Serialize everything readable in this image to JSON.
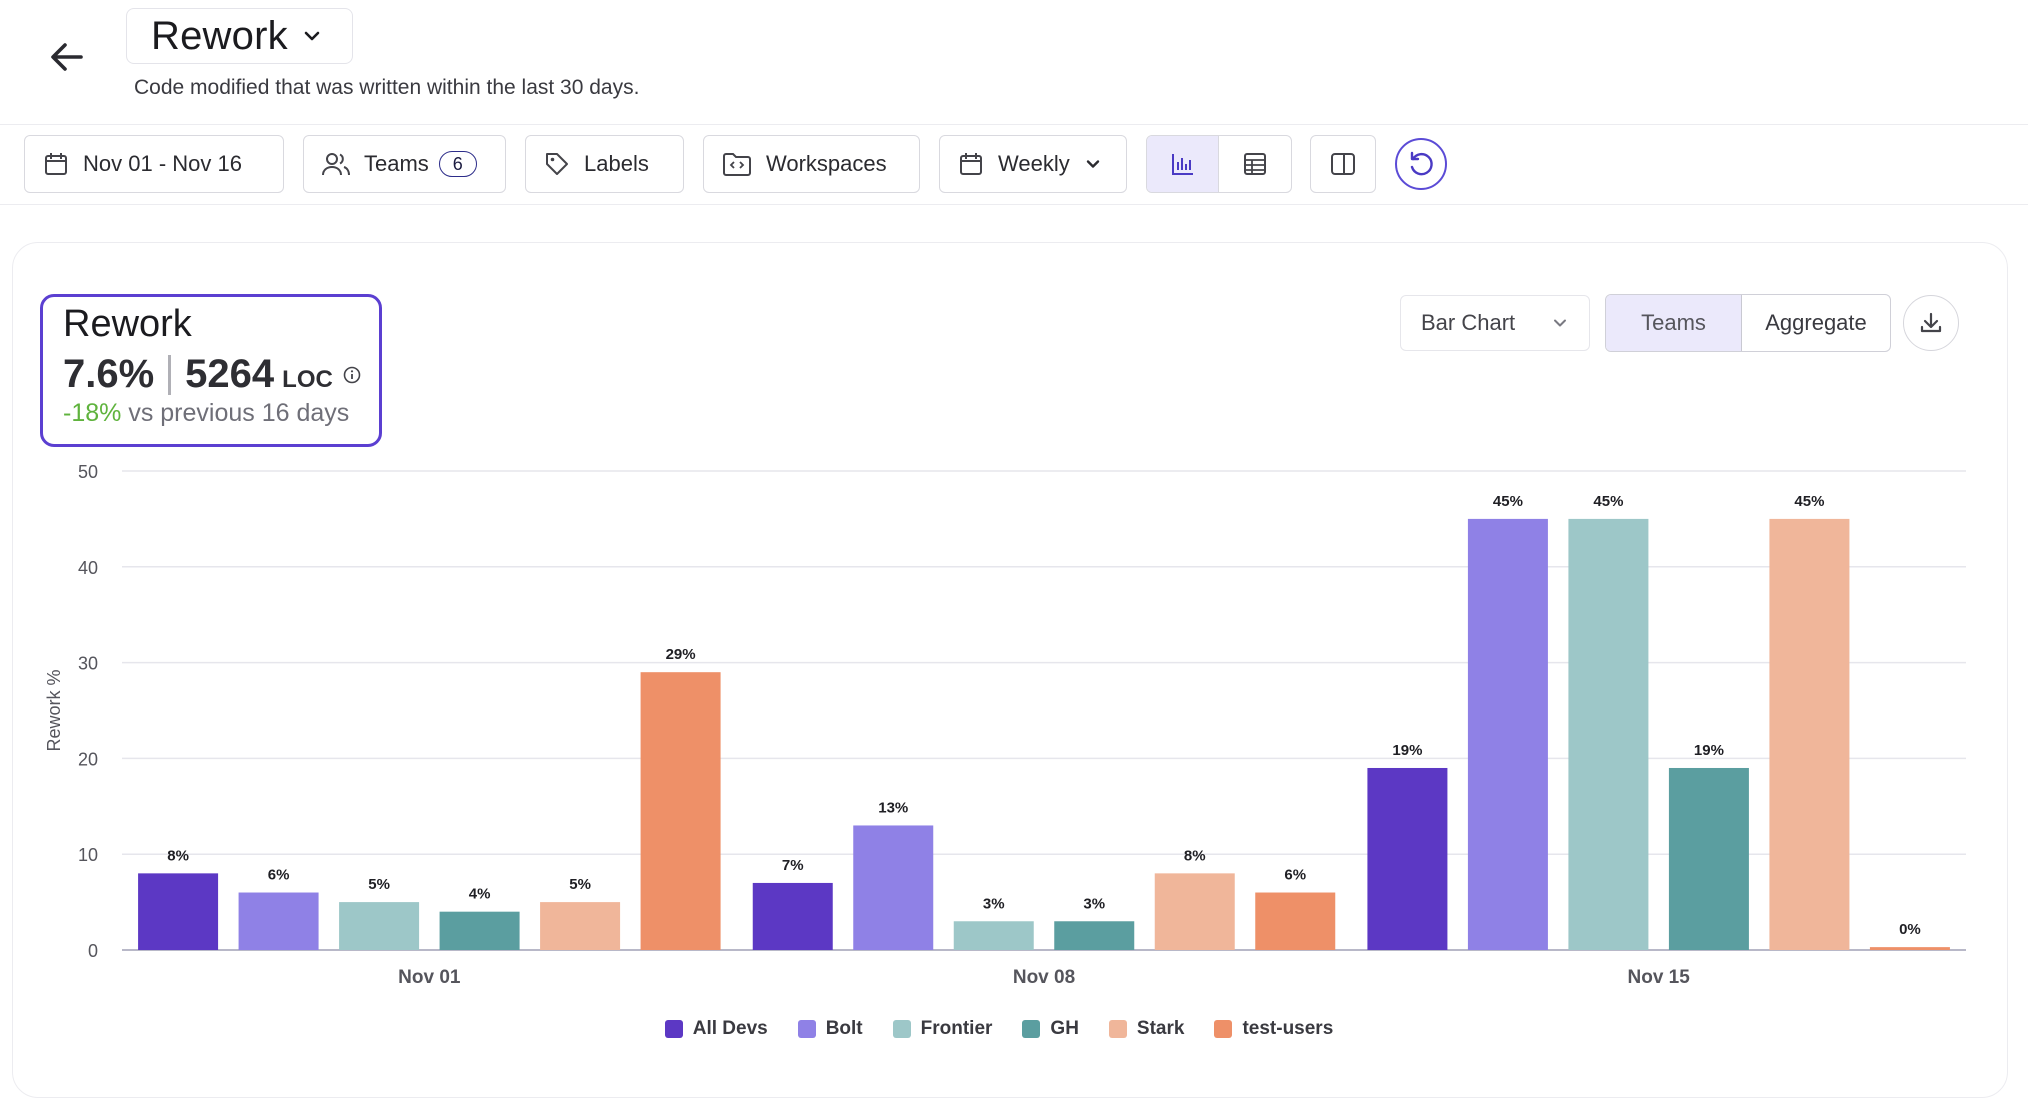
{
  "header": {
    "title": "Rework",
    "subtitle": "Code modified that was written within the last 30 days."
  },
  "toolbar": {
    "date_range": "Nov 01 - Nov 16",
    "teams_label": "Teams",
    "teams_count": "6",
    "labels_label": "Labels",
    "workspaces_label": "Workspaces",
    "interval_label": "Weekly"
  },
  "metric": {
    "title": "Rework",
    "percent": "7.6%",
    "loc": "5264",
    "loc_unit": "LOC",
    "change_pct": "-18%",
    "change_text": "vs previous 16 days"
  },
  "controls": {
    "chart_type": "Bar Chart",
    "group_teams": "Teams",
    "group_aggregate": "Aggregate"
  },
  "colors": {
    "accent": "#5b3fd1",
    "All Devs": "#5c38c4",
    "Bolt": "#8f81e6",
    "Frontier": "#9dc7c8",
    "GH": "#5b9ea0",
    "Stark": "#f0b69a",
    "test-users": "#ee9068"
  },
  "chart_data": {
    "type": "bar",
    "categories": [
      "Nov 01",
      "Nov 08",
      "Nov 15"
    ],
    "ylabel": "Rework %",
    "xlabel": "",
    "ylim": [
      0,
      50
    ],
    "yticks": [
      0,
      10,
      20,
      30,
      40,
      50
    ],
    "grid": true,
    "legend_position": "bottom",
    "series": [
      {
        "name": "All Devs",
        "values": [
          8,
          7,
          19
        ],
        "labels": [
          "8%",
          "7%",
          "19%"
        ]
      },
      {
        "name": "Bolt",
        "values": [
          6,
          13,
          45
        ],
        "labels": [
          "6%",
          "13%",
          "45%"
        ]
      },
      {
        "name": "Frontier",
        "values": [
          5,
          3,
          45
        ],
        "labels": [
          "5%",
          "3%",
          "45%"
        ]
      },
      {
        "name": "GH",
        "values": [
          4,
          3,
          19
        ],
        "labels": [
          "4%",
          "3%",
          "19%"
        ]
      },
      {
        "name": "Stark",
        "values": [
          5,
          8,
          45
        ],
        "labels": [
          "5%",
          "8%",
          "45%"
        ]
      },
      {
        "name": "test-users",
        "values": [
          29,
          6,
          0.3
        ],
        "labels": [
          "29%",
          "6%",
          "0%"
        ]
      }
    ]
  }
}
